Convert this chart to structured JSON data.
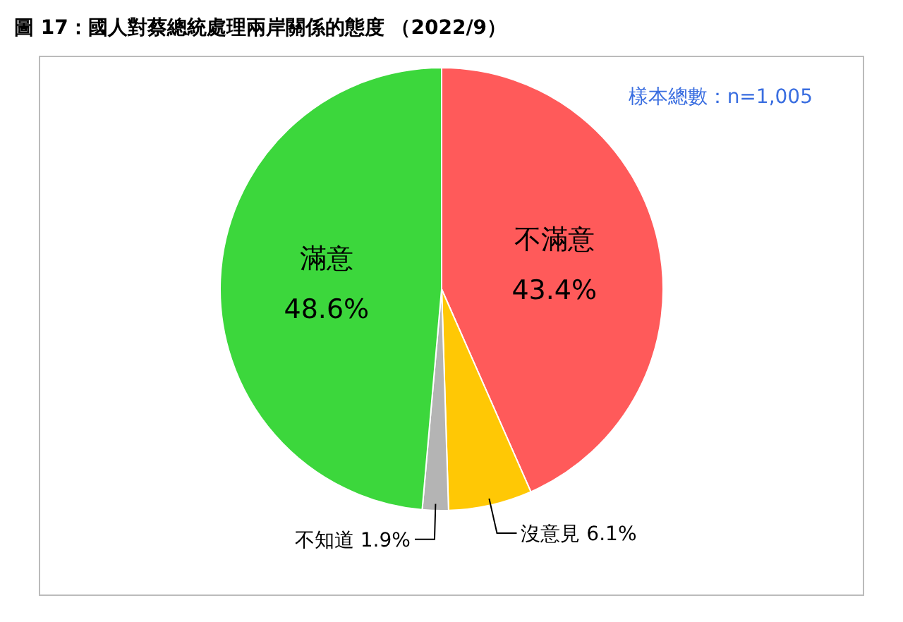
{
  "chart_data": {
    "type": "pie",
    "title": "圖 17：國人對蔡總統處理兩岸關係的態度 （2022/9）",
    "categories": [
      "不滿意",
      "沒意見",
      "不知道",
      "滿意"
    ],
    "values": [
      43.4,
      6.1,
      1.9,
      48.6
    ],
    "value_labels": [
      "43.4%",
      "6.1%",
      "1.9%",
      "48.6%"
    ],
    "colors": [
      "#ff5a5a",
      "#ffc805",
      "#b4b4b4",
      "#3cd73c"
    ],
    "annotations": [
      "樣本總數：n=1,005"
    ],
    "legend": false
  }
}
